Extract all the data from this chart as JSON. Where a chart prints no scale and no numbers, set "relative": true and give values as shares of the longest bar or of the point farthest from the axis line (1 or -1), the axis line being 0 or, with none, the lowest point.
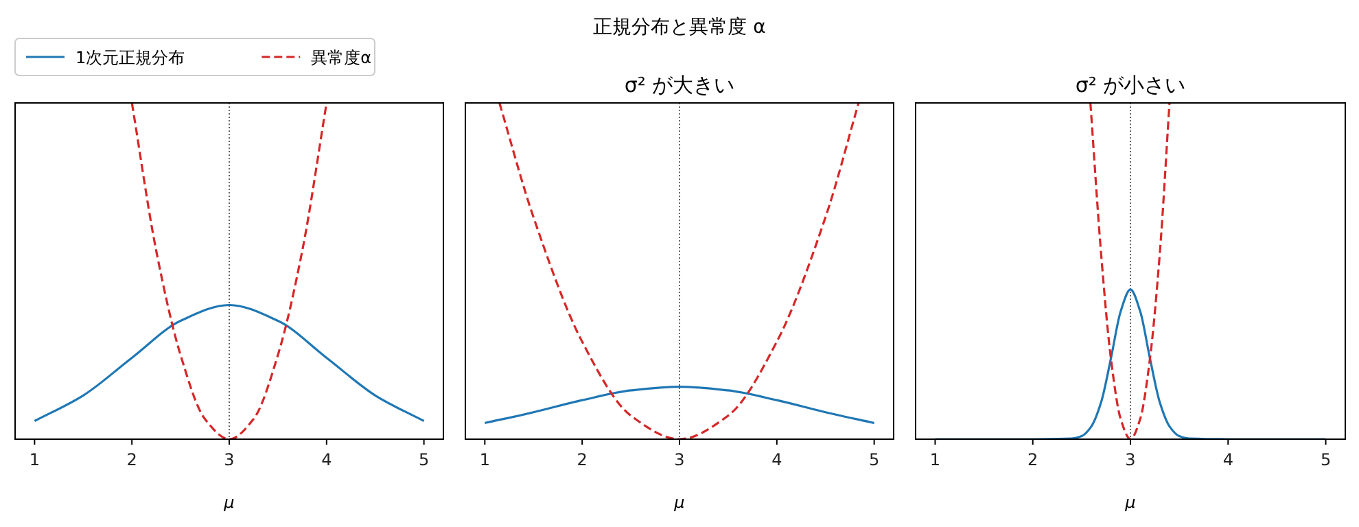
{
  "chart_data": [
    {
      "type": "line",
      "xlabel": "μ",
      "relative": true,
      "xlim": [
        0.8,
        5.2
      ],
      "xticks": [
        1,
        2,
        3,
        4,
        5
      ],
      "tick_labels": "x",
      "legend": "top left",
      "grid": false,
      "ref_lines": [
        {
          "axis": "x",
          "value": 3,
          "color": "#000000",
          "line_style": "dotted"
        }
      ],
      "series": [
        {
          "name": "1次元正規分布",
          "color": "#1f77b4",
          "line_style": "solid",
          "x": [
            1,
            1.5,
            2,
            2.5,
            3,
            3.5,
            4,
            4.5,
            5
          ],
          "values": [
            0.054,
            0.13,
            0.242,
            0.352,
            0.399,
            0.352,
            0.242,
            0.13,
            0.054
          ]
        },
        {
          "name": "異常度α",
          "color": "#d62728",
          "line_style": "dashed",
          "x": [
            2,
            2.25,
            2.5,
            2.75,
            3,
            3.25,
            3.5,
            3.75,
            4
          ],
          "values": [
            1,
            0.56,
            0.25,
            0.06,
            0,
            0.06,
            0.25,
            0.56,
            1
          ]
        }
      ]
    },
    {
      "type": "line",
      "title": "σ² が大きい",
      "annotations": [
        "正規分布と異常度 α"
      ],
      "xlabel": "μ",
      "relative": true,
      "xlim": [
        0.8,
        5.2
      ],
      "xticks": [
        1,
        2,
        3,
        4,
        5
      ],
      "tick_labels": "x",
      "grid": false,
      "ref_lines": [
        {
          "axis": "x",
          "value": 3,
          "color": "#000000",
          "line_style": "dotted"
        }
      ],
      "series": [
        {
          "color": "#1f77b4",
          "line_style": "solid",
          "x": [
            1,
            1.5,
            2,
            2.5,
            3,
            3.5,
            4,
            4.5,
            5
          ],
          "values": [
            0.048,
            0.08,
            0.116,
            0.145,
            0.156,
            0.145,
            0.116,
            0.08,
            0.048
          ]
        },
        {
          "color": "#d62728",
          "line_style": "dashed",
          "x": [
            1.15,
            1.5,
            2,
            2.5,
            3,
            3.5,
            4,
            4.5,
            4.84
          ],
          "values": [
            1,
            0.66,
            0.29,
            0.07,
            0,
            0.07,
            0.29,
            0.66,
            1
          ]
        }
      ]
    },
    {
      "type": "line",
      "title": "σ² が小さい",
      "xlabel": "μ",
      "relative": true,
      "xlim": [
        0.8,
        5.2
      ],
      "xticks": [
        1,
        2,
        3,
        4,
        5
      ],
      "tick_labels": "x",
      "grid": false,
      "ref_lines": [
        {
          "axis": "x",
          "value": 3,
          "color": "#000000",
          "line_style": "dotted"
        }
      ],
      "series": [
        {
          "color": "#1f77b4",
          "line_style": "solid",
          "x": [
            1,
            2,
            2.4,
            2.5,
            2.6,
            2.7,
            2.8,
            2.9,
            3,
            3.1,
            3.2,
            3.3,
            3.4,
            3.5,
            3.6,
            4,
            5
          ],
          "values": [
            0,
            0,
            0.002,
            0.009,
            0.038,
            0.11,
            0.24,
            0.38,
            0.445,
            0.38,
            0.24,
            0.11,
            0.038,
            0.009,
            0.002,
            0,
            0
          ]
        },
        {
          "color": "#d62728",
          "line_style": "dashed",
          "x": [
            2.59,
            2.7,
            2.8,
            2.9,
            3,
            3.1,
            3.2,
            3.3,
            3.4
          ],
          "values": [
            1,
            0.55,
            0.24,
            0.06,
            0,
            0.06,
            0.24,
            0.55,
            1
          ]
        }
      ]
    }
  ]
}
